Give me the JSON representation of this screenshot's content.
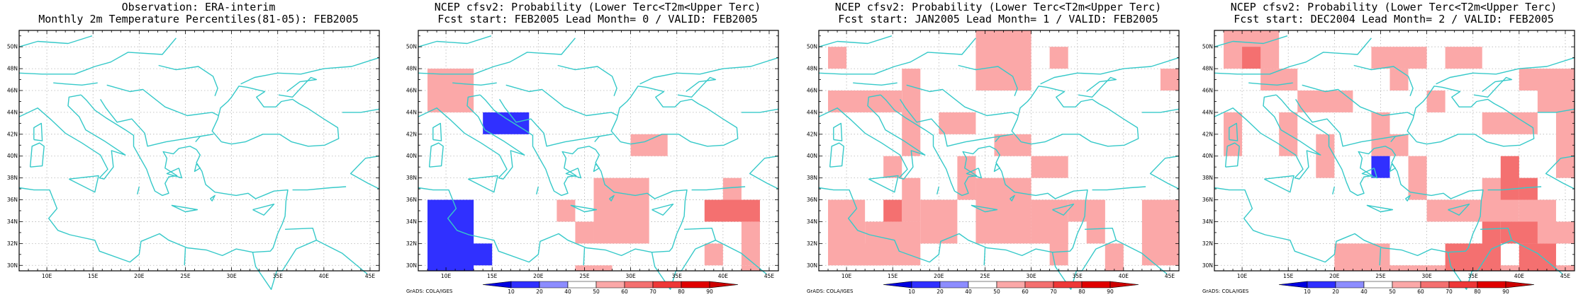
{
  "panels": [
    {
      "line1": "Observation: ERA-interim",
      "line2": "Monthly 2m Temperature Percentiles(81-05): FEB2005",
      "colorbar": false,
      "cells": []
    },
    {
      "line1": "NCEP cfsv2: Probability (Lower Terc<T2m<Upper Terc)",
      "line2": "Fcst start: FEB2005  Lead Month= 0 / VALID: FEB2005",
      "colorbar": true,
      "cells": [
        [
          8,
          48,
          5,
          4,
          "p50"
        ],
        [
          14,
          44,
          5,
          2,
          "b20"
        ],
        [
          8,
          36,
          5,
          8,
          "b20"
        ],
        [
          10,
          32,
          5,
          2,
          "b20"
        ],
        [
          22,
          36,
          2,
          2,
          "p50"
        ],
        [
          24,
          34,
          2,
          2,
          "p50"
        ],
        [
          26,
          38,
          6,
          6,
          "p50"
        ],
        [
          30,
          42,
          4,
          2,
          "p50"
        ],
        [
          24,
          30,
          4,
          6,
          "p50"
        ],
        [
          40,
          38,
          2,
          4,
          "p50"
        ],
        [
          38,
          36,
          6,
          2,
          "r60"
        ],
        [
          42,
          34,
          2,
          4,
          "p50"
        ],
        [
          38,
          32,
          2,
          2,
          "p50"
        ],
        [
          42,
          30,
          2,
          2,
          "p50"
        ]
      ]
    },
    {
      "line1": "NCEP cfsv2: Probability (Lower Terc<T2m<Upper Terc)",
      "line2": "Fcst start: JAN2005  Lead Month= 1 / VALID: FEB2005",
      "colorbar": true,
      "cells": [
        [
          8,
          50,
          2,
          2,
          "p50"
        ],
        [
          8,
          46,
          8,
          2,
          "p50"
        ],
        [
          16,
          48,
          2,
          4,
          "p50"
        ],
        [
          20,
          44,
          4,
          2,
          "p50"
        ],
        [
          24,
          52,
          6,
          6,
          "p50"
        ],
        [
          32,
          50,
          2,
          2,
          "p50"
        ],
        [
          16,
          44,
          2,
          4,
          "p50"
        ],
        [
          14,
          40,
          2,
          2,
          "p50"
        ],
        [
          16,
          38,
          2,
          4,
          "p50"
        ],
        [
          12,
          34,
          6,
          4,
          "p50"
        ],
        [
          8,
          36,
          4,
          6,
          "p50"
        ],
        [
          10,
          32,
          4,
          2,
          "p50"
        ],
        [
          14,
          36,
          2,
          2,
          "r60"
        ],
        [
          18,
          36,
          4,
          4,
          "p50"
        ],
        [
          22,
          40,
          2,
          4,
          "p50"
        ],
        [
          26,
          42,
          4,
          2,
          "p50"
        ],
        [
          30,
          40,
          4,
          2,
          "p50"
        ],
        [
          24,
          38,
          6,
          6,
          "p50"
        ],
        [
          30,
          36,
          4,
          4,
          "p50"
        ],
        [
          34,
          36,
          4,
          2,
          "p50"
        ],
        [
          32,
          34,
          2,
          4,
          "p50"
        ],
        [
          36,
          36,
          2,
          4,
          "p50"
        ],
        [
          38,
          32,
          2,
          4,
          "p50"
        ],
        [
          42,
          36,
          4,
          6,
          "p50"
        ],
        [
          44,
          48,
          2,
          2,
          "p50"
        ]
      ]
    },
    {
      "line1": "NCEP cfsv2: Probability (Lower Terc<T2m<Upper Terc)",
      "line2": "Fcst start: DEC2004  Lead Month= 2 / VALID: FEB2005",
      "colorbar": true,
      "cells": [
        [
          8,
          52,
          6,
          4,
          "p50"
        ],
        [
          10,
          50,
          2,
          2,
          "r60"
        ],
        [
          12,
          48,
          4,
          2,
          "p50"
        ],
        [
          16,
          46,
          6,
          2,
          "p50"
        ],
        [
          24,
          50,
          6,
          2,
          "p50"
        ],
        [
          26,
          48,
          2,
          2,
          "p50"
        ],
        [
          30,
          46,
          2,
          2,
          "p50"
        ],
        [
          32,
          50,
          4,
          2,
          "p50"
        ],
        [
          8,
          44,
          2,
          4,
          "p50"
        ],
        [
          14,
          44,
          2,
          4,
          "p50"
        ],
        [
          18,
          42,
          2,
          4,
          "p50"
        ],
        [
          24,
          44,
          2,
          4,
          "p50"
        ],
        [
          26,
          42,
          2,
          2,
          "p50"
        ],
        [
          28,
          40,
          2,
          4,
          "p50"
        ],
        [
          36,
          44,
          6,
          2,
          "p50"
        ],
        [
          42,
          46,
          4,
          2,
          "p50"
        ],
        [
          40,
          48,
          6,
          2,
          "p50"
        ],
        [
          44,
          46,
          2,
          8,
          "p50"
        ],
        [
          24,
          40,
          2,
          2,
          "b20"
        ],
        [
          30,
          36,
          8,
          2,
          "p50"
        ],
        [
          36,
          38,
          4,
          4,
          "p50"
        ],
        [
          38,
          40,
          2,
          4,
          "r60"
        ],
        [
          40,
          36,
          4,
          4,
          "p50"
        ],
        [
          40,
          38,
          2,
          2,
          "r60"
        ],
        [
          20,
          32,
          6,
          4,
          "p50"
        ],
        [
          26,
          30,
          6,
          6,
          "p50"
        ],
        [
          32,
          32,
          6,
          6,
          "r60"
        ],
        [
          36,
          34,
          2,
          4,
          "r60"
        ],
        [
          38,
          34,
          4,
          2,
          "r60"
        ],
        [
          40,
          32,
          4,
          4,
          "r60"
        ],
        [
          34,
          30,
          4,
          2,
          "r60"
        ],
        [
          38,
          30,
          2,
          2,
          "p50"
        ],
        [
          44,
          30,
          2,
          4,
          "p50"
        ],
        [
          42,
          34,
          4,
          2,
          "p50"
        ]
      ]
    }
  ],
  "colors": {
    "b20": "#3030ff",
    "p50": "#fba8a8",
    "r60": "#f47070",
    "coast": "#36c9c9",
    "grid": "#b4b4b4"
  },
  "axis": {
    "lon_ticks": [
      10,
      15,
      20,
      25,
      30,
      35,
      40,
      45
    ],
    "lon_labels": [
      "10E",
      "15E",
      "20E",
      "25E",
      "30E",
      "35E",
      "40E",
      "45E"
    ],
    "lat_ticks": [
      30,
      32,
      34,
      36,
      38,
      40,
      42,
      44,
      46,
      48,
      50
    ],
    "lat_labels": [
      "30N",
      "32N",
      "34N",
      "36N",
      "38N",
      "40N",
      "42N",
      "44N",
      "46N",
      "48N",
      "50N"
    ],
    "lon_range": [
      7,
      46
    ],
    "lat_range": [
      29.5,
      51.5
    ]
  },
  "colorbar": {
    "labels": [
      "10",
      "20",
      "40",
      "50",
      "60",
      "70",
      "80",
      "90"
    ],
    "colors": [
      "#0000e0",
      "#3030ff",
      "#8c8cff",
      "#ffffff",
      "#fba8a8",
      "#f47070",
      "#ee3838",
      "#e00000",
      "#cc0000"
    ]
  },
  "credit": "GrADS: COLA/IGES"
}
